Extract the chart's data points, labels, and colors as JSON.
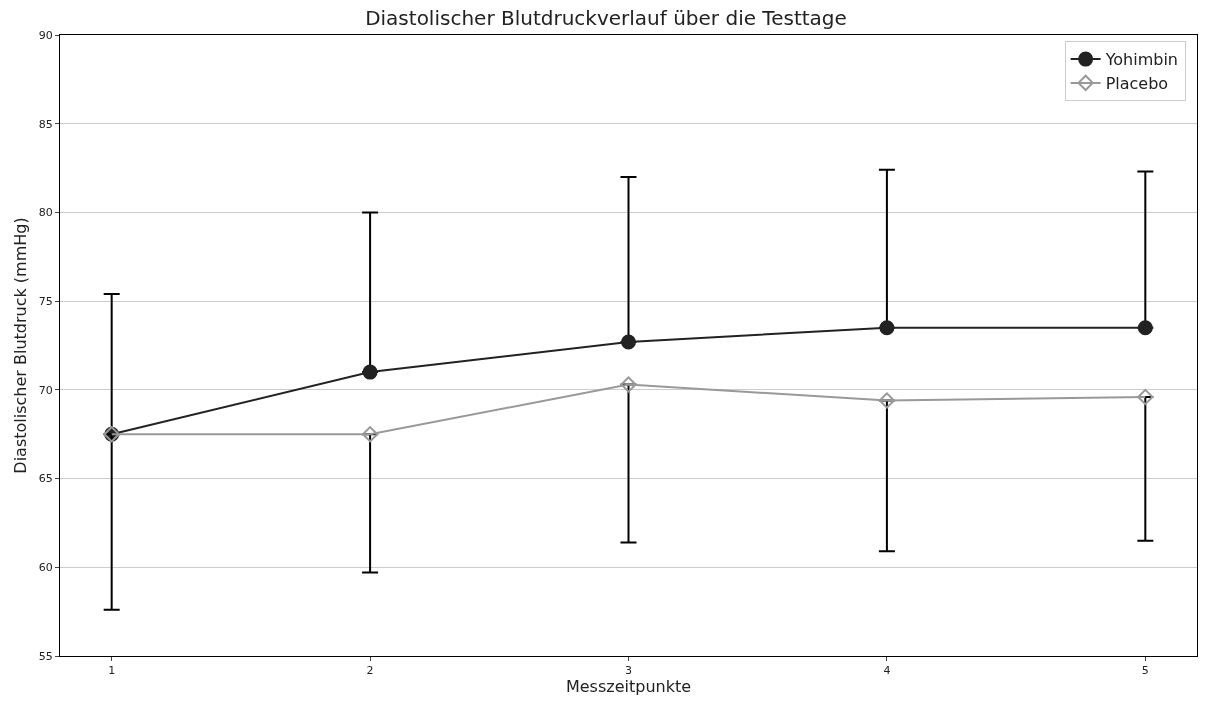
{
  "chart_data": {
    "type": "line",
    "title": "Diastolischer Blutdruckverlauf über die Testtage",
    "xlabel": "Messzeitpunkte",
    "ylabel": "Diastolischer Blutdruck (mmHg)",
    "x": [
      1,
      2,
      3,
      4,
      5
    ],
    "series": [
      {
        "name": "Yohimbin",
        "color": "#222222",
        "marker": "circle",
        "values": [
          67.5,
          71.0,
          72.7,
          73.5,
          73.5
        ],
        "errors": [
          [
            67.5,
            75.4
          ],
          [
            71.0,
            80.0
          ],
          [
            72.7,
            82.0
          ],
          [
            73.5,
            82.4
          ],
          [
            73.5,
            82.3
          ]
        ]
      },
      {
        "name": "Placebo",
        "color": "#999999",
        "marker": "diamond",
        "values": [
          67.5,
          67.5,
          70.3,
          69.4,
          69.6
        ],
        "errors": [
          [
            57.6,
            67.5
          ],
          [
            59.7,
            67.5
          ],
          [
            61.4,
            70.3
          ],
          [
            60.9,
            69.4
          ],
          [
            61.5,
            69.6
          ]
        ]
      }
    ],
    "xlim": [
      0.8,
      5.2
    ],
    "xticks": [
      1,
      2,
      3,
      4,
      5
    ],
    "ylim": [
      55,
      90
    ],
    "yticks": [
      55,
      60,
      65,
      70,
      75,
      80,
      85,
      90
    ],
    "grid": "y",
    "legend": "top right"
  }
}
